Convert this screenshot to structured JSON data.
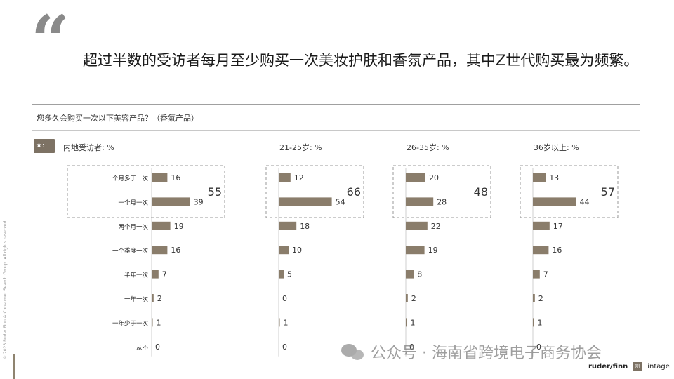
{
  "headline": "超过半数的受访者每月至少购买一次美妆护肤和香氛产品，其中Z世代购买最为频繁。",
  "question": "您多久会购买一次以下美容产品？（香氛产品）",
  "watermark_text": "公众号 · 海南省跨境电子商务协会",
  "copyright_text": "© 2023 Ruder Finn & Consumer Search Group. All rights reserved.",
  "logos": {
    "ruderfinn": "ruder/finn",
    "intage": "intage",
    "box_char": "凯"
  },
  "colors": {
    "bar": "#8a7d6b",
    "accent": "#7d7264"
  },
  "chart_data": {
    "type": "bar",
    "orientation": "horizontal",
    "categories": [
      "一个月多于一次",
      "一个月一次",
      "两个月一次",
      "一个季度一次",
      "半年一次",
      "一年一次",
      "一年少于一次",
      "从不"
    ],
    "series": [
      {
        "name": "内地受访者: %",
        "values": [
          16,
          39,
          19,
          16,
          7,
          2,
          1,
          0
        ],
        "monthly_total": 55
      },
      {
        "name": "21-25岁: %",
        "values": [
          12,
          54,
          18,
          10,
          5,
          0,
          1,
          0
        ],
        "monthly_total": 66
      },
      {
        "name": "26-35岁: %",
        "values": [
          20,
          28,
          22,
          19,
          8,
          2,
          1,
          0
        ],
        "monthly_total": 48
      },
      {
        "name": "36岁以上: %",
        "values": [
          13,
          44,
          17,
          16,
          7,
          2,
          1,
          0
        ],
        "monthly_total": 57
      }
    ],
    "xlim": [
      0,
      60
    ],
    "grid": false,
    "legend": "none"
  }
}
